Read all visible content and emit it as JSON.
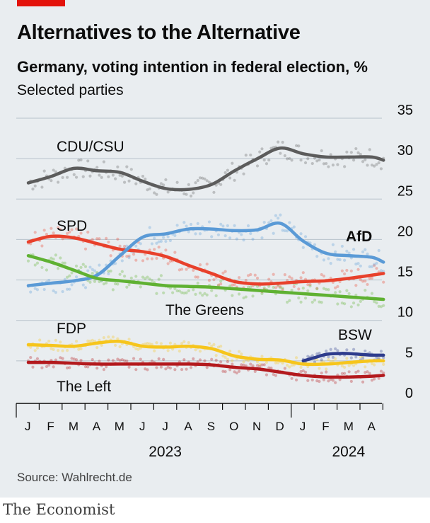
{
  "header": {
    "title": "Alternatives to the Alternative",
    "subtitle": "Germany, voting intention in federal election, %",
    "subtitle2": "Selected parties"
  },
  "footer": {
    "source": "Source: Wahlrecht.de",
    "brand": "The Economist"
  },
  "colors": {
    "background": "#e9edf0",
    "accent": "#e3120b",
    "grid": "#b7c2cb"
  },
  "chart_data": {
    "type": "line",
    "title": "Alternatives to the Alternative",
    "subtitle": "Germany, voting intention in federal election, %",
    "ylim": [
      0,
      35
    ],
    "y_ticks": [
      0,
      5,
      10,
      15,
      20,
      25,
      30,
      35
    ],
    "y_tick_labels": [
      "0",
      "5",
      "10",
      "15",
      "20",
      "25",
      "30",
      "35"
    ],
    "grid": true,
    "x_month_labels": [
      "J",
      "F",
      "M",
      "A",
      "M",
      "J",
      "J",
      "A",
      "S",
      "O",
      "N",
      "D",
      "J",
      "F",
      "M",
      "A"
    ],
    "x_year_labels": [
      {
        "label": "2023",
        "month": 6.5
      },
      {
        "label": "2024",
        "month": 14.5
      }
    ],
    "x_unit": "months since Jan 1 2023",
    "x": [
      0,
      1,
      2,
      3,
      4,
      5,
      6,
      7,
      8,
      9,
      10,
      11,
      12,
      13,
      14,
      15,
      15.5
    ],
    "series": [
      {
        "name": "CDU/CSU",
        "color": "#5c5c5c",
        "values": [
          27,
          27.8,
          28.8,
          28.5,
          28.3,
          27.2,
          26.3,
          26.2,
          26.8,
          28.5,
          30,
          31.3,
          30.6,
          30.2,
          30.2,
          30.2,
          29.8
        ]
      },
      {
        "name": "SPD",
        "color": "#e8402b",
        "values": [
          19.7,
          20.4,
          20.2,
          19.5,
          18.8,
          18.5,
          17.9,
          16.8,
          15.8,
          14.8,
          14.5,
          14.6,
          14.8,
          14.9,
          15.2,
          15.6,
          15.8
        ]
      },
      {
        "name": "AfD",
        "color": "#5a9ad6",
        "values": [
          14.3,
          14.6,
          14.9,
          15.6,
          18,
          20.3,
          20.7,
          21.3,
          21.3,
          21.1,
          21.2,
          22,
          19.8,
          18.3,
          18,
          17.8,
          17.2
        ]
      },
      {
        "name": "The Greens",
        "color": "#5fb132",
        "values": [
          18,
          17.2,
          16.2,
          15.2,
          14.9,
          14.6,
          14.3,
          14.2,
          14.1,
          13.9,
          13.7,
          13.5,
          13.3,
          13.1,
          12.9,
          12.7,
          12.6
        ]
      },
      {
        "name": "FDP",
        "color": "#f6c51c",
        "values": [
          7,
          6.9,
          6.8,
          7.2,
          7.4,
          6.8,
          6.7,
          6.8,
          6.5,
          5.6,
          5.2,
          5.1,
          4.6,
          4.6,
          4.8,
          5.0,
          5.0
        ]
      },
      {
        "name": "The Left",
        "color": "#b3191d",
        "values": [
          4.8,
          4.8,
          4.7,
          4.6,
          4.6,
          4.6,
          4.6,
          4.6,
          4.5,
          4.2,
          4.0,
          3.6,
          3.2,
          3.0,
          3.0,
          3.1,
          3.2
        ]
      },
      {
        "name": "BSW",
        "color": "#2d3b8c",
        "x": [
          12,
          12.5,
          13,
          13.5,
          14,
          14.5,
          15,
          15.5
        ],
        "values": [
          5,
          5.4,
          5.8,
          5.9,
          5.9,
          5.8,
          5.7,
          5.7
        ]
      }
    ]
  }
}
